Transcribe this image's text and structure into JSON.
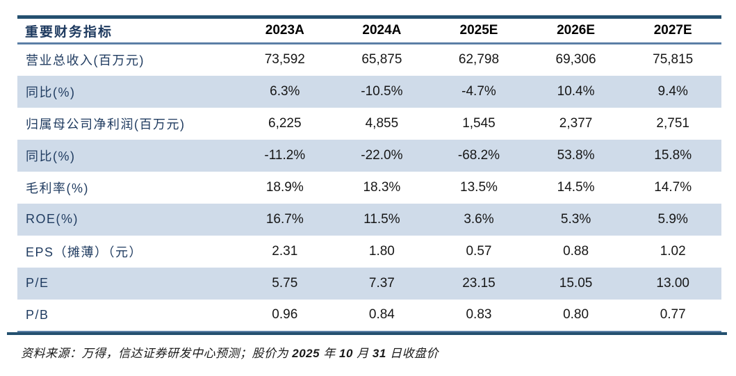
{
  "table": {
    "header": {
      "metric_label": "重要财务指标",
      "columns": [
        "2023A",
        "2024A",
        "2025E",
        "2026E",
        "2027E"
      ]
    },
    "rows": [
      {
        "label": "营业总收入(百万元)",
        "values": [
          "73,592",
          "65,875",
          "62,798",
          "69,306",
          "75,815"
        ],
        "shaded": false
      },
      {
        "label": "同比(%)",
        "values": [
          "6.3%",
          "-10.5%",
          "-4.7%",
          "10.4%",
          "9.4%"
        ],
        "shaded": true
      },
      {
        "label": "归属母公司净利润(百万元)",
        "values": [
          "6,225",
          "4,855",
          "1,545",
          "2,377",
          "2,751"
        ],
        "shaded": false
      },
      {
        "label": "同比(%)",
        "values": [
          "-11.2%",
          "-22.0%",
          "-68.2%",
          "53.8%",
          "15.8%"
        ],
        "shaded": true
      },
      {
        "label": "毛利率(%)",
        "values": [
          "18.9%",
          "18.3%",
          "13.5%",
          "14.5%",
          "14.7%"
        ],
        "shaded": false
      },
      {
        "label": "ROE(%)",
        "values": [
          "16.7%",
          "11.5%",
          "3.6%",
          "5.3%",
          "5.9%"
        ],
        "shaded": true
      },
      {
        "label": "EPS（摊薄）（元）",
        "values": [
          "2.31",
          "1.80",
          "0.57",
          "0.88",
          "1.02"
        ],
        "shaded": false
      },
      {
        "label": "P/E",
        "values": [
          "5.75",
          "7.37",
          "23.15",
          "15.05",
          "13.00"
        ],
        "shaded": true
      },
      {
        "label": "P/B",
        "values": [
          "0.96",
          "0.84",
          "0.83",
          "0.80",
          "0.77"
        ],
        "shaded": false
      }
    ]
  },
  "footer": {
    "segments": [
      {
        "text": "资料来源：万得，信达证券研发中心预测；股价为 ",
        "bold": false
      },
      {
        "text": "2025",
        "bold": true
      },
      {
        "text": " 年 ",
        "bold": false
      },
      {
        "text": "10",
        "bold": true
      },
      {
        "text": " 月 ",
        "bold": false
      },
      {
        "text": "31",
        "bold": true
      },
      {
        "text": " 日收盘价",
        "bold": false
      }
    ]
  },
  "colors": {
    "border-navy": "#24506f",
    "rule-blue": "#5b7fa6",
    "row-shade": "#cfdbe9",
    "label-navy": "#1e3a5f",
    "value-black": "#161616",
    "footer-black": "#1a1a1a"
  }
}
